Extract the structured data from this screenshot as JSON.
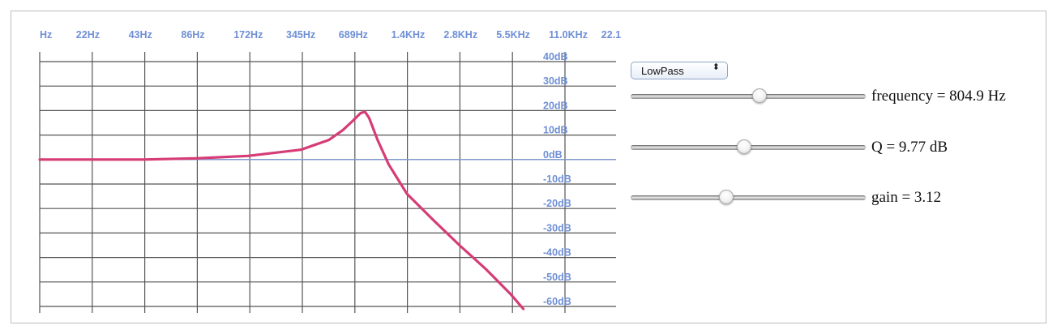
{
  "plot": {
    "freq_labels": [
      "Hz",
      "22Hz",
      "43Hz",
      "86Hz",
      "172Hz",
      "345Hz",
      "689Hz",
      "1.4KHz",
      "2.8KHz",
      "5.5KHz",
      "11.0KHz",
      "22.1"
    ],
    "db_labels": [
      "40dB",
      "30dB",
      "20dB",
      "10dB",
      "0dB",
      "-10dB",
      "-20dB",
      "-30dB",
      "-40dB",
      "-50dB",
      "-60dB"
    ],
    "colors": {
      "grid": "#555555",
      "zero_line": "#7f99cc",
      "curve": "#d63c75",
      "label": "#6f8fd6"
    }
  },
  "chart_data": {
    "type": "line",
    "x_scale": "log2",
    "x": [
      11,
      22,
      43,
      86,
      172,
      345,
      500,
      600,
      689,
      760,
      804.9,
      850,
      950,
      1100,
      1400,
      2000,
      2800,
      4000,
      5500,
      6500
    ],
    "series": [
      {
        "values": [
          0,
          0,
          0,
          0.5,
          1.5,
          4,
          8,
          12,
          16,
          19,
          19.5,
          17,
          8,
          -2,
          -14,
          -25,
          -35,
          -45,
          -55,
          -61
        ]
      }
    ],
    "ylim": [
      -60,
      40
    ]
  },
  "controls": {
    "filter_type": "LowPass",
    "select_arrows": "⬍",
    "frequency": {
      "label": "frequency = 804.9 Hz",
      "position": 0.55
    },
    "q": {
      "label": "Q = 9.77 dB",
      "position": 0.48
    },
    "gain": {
      "label": "gain = 3.12",
      "position": 0.4
    }
  }
}
